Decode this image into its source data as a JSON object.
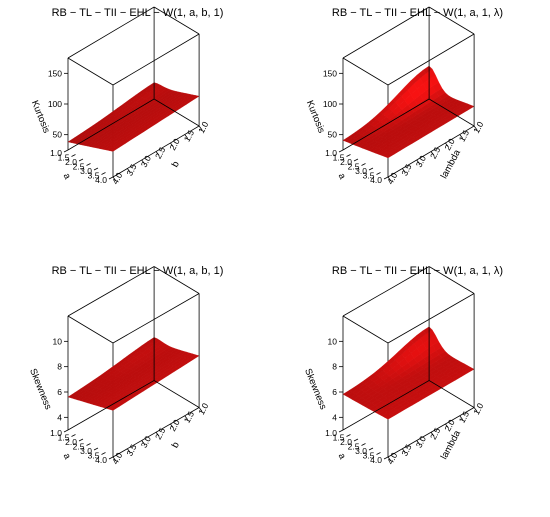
{
  "chart_data": [
    {
      "type": "surface3d",
      "title": "RB − TL − TII − EHL − W(1, a, b, 1)",
      "xlabel": "a",
      "ylabel": "b",
      "zlabel": "Kurtosis",
      "x_ticks": [
        "1.0",
        "1.5",
        "2.0",
        "2.5",
        "3.0",
        "3.5",
        "4.0"
      ],
      "y_ticks": [
        "1.0",
        "1.5",
        "2.0",
        "2.5",
        "3.0",
        "3.5",
        "4.0"
      ],
      "z_ticks": [
        "50",
        "100",
        "150"
      ],
      "xlim": [
        1,
        4
      ],
      "ylim": [
        1,
        4
      ],
      "zlim": [
        25,
        175
      ],
      "surface_color": "#ee1111",
      "surface": {
        "z_far": 70,
        "z_near": 38,
        "z_peak": 45,
        "z_side": 55
      }
    },
    {
      "type": "surface3d",
      "title": "RB − TL − TII − EHL − W(1, a, 1, λ)",
      "xlabel": "a",
      "ylabel": "lambda",
      "zlabel": "Kurtosis",
      "x_ticks": [
        "1.0",
        "1.5",
        "2.0",
        "2.5",
        "3.0",
        "3.5",
        "4.0"
      ],
      "y_ticks": [
        "1.0",
        "1.5",
        "2.0",
        "2.5",
        "3.0",
        "3.5",
        "4.0"
      ],
      "z_ticks": [
        "50",
        "100",
        "150"
      ],
      "xlim": [
        1,
        4
      ],
      "ylim": [
        1,
        4
      ],
      "zlim": [
        25,
        175
      ],
      "surface_color": "#ee1111",
      "surface": {
        "z_far": 58,
        "z_near": 40,
        "z_peak": 78,
        "z_side": 42
      }
    },
    {
      "type": "surface3d",
      "title": "RB − TL − TII − EHL − W(1, a, b, 1)",
      "xlabel": "a",
      "ylabel": "b",
      "zlabel": "Skewness",
      "x_ticks": [
        "1.0",
        "1.5",
        "2.0",
        "2.5",
        "3.0",
        "3.5",
        "4.0"
      ],
      "y_ticks": [
        "1.0",
        "1.5",
        "2.0",
        "2.5",
        "3.0",
        "3.5",
        "4.0"
      ],
      "z_ticks": [
        "4",
        "6",
        "8",
        "10"
      ],
      "xlim": [
        1,
        4
      ],
      "ylim": [
        1,
        4
      ],
      "zlim": [
        3,
        12
      ],
      "surface_color": "#ee1111",
      "surface": {
        "z_far": 6.8,
        "z_near": 5.6,
        "z_peak": 6.0,
        "z_side": 6.6
      }
    },
    {
      "type": "surface3d",
      "title": "RB − TL − TII − EHL − W(1, a, 1, λ)",
      "xlabel": "a",
      "ylabel": "lambda",
      "zlabel": "Skewness",
      "x_ticks": [
        "1.0",
        "1.5",
        "2.0",
        "2.5",
        "3.0",
        "3.5",
        "4.0"
      ],
      "y_ticks": [
        "1.0",
        "1.5",
        "2.0",
        "2.5",
        "3.0",
        "3.5",
        "4.0"
      ],
      "z_ticks": [
        "4",
        "6",
        "8",
        "10"
      ],
      "xlim": [
        1,
        4
      ],
      "ylim": [
        1,
        4
      ],
      "zlim": [
        3,
        12
      ],
      "surface_color": "#ee1111",
      "surface": {
        "z_far": 6.0,
        "z_near": 5.8,
        "z_peak": 7.2,
        "z_side": 5.9
      }
    }
  ]
}
